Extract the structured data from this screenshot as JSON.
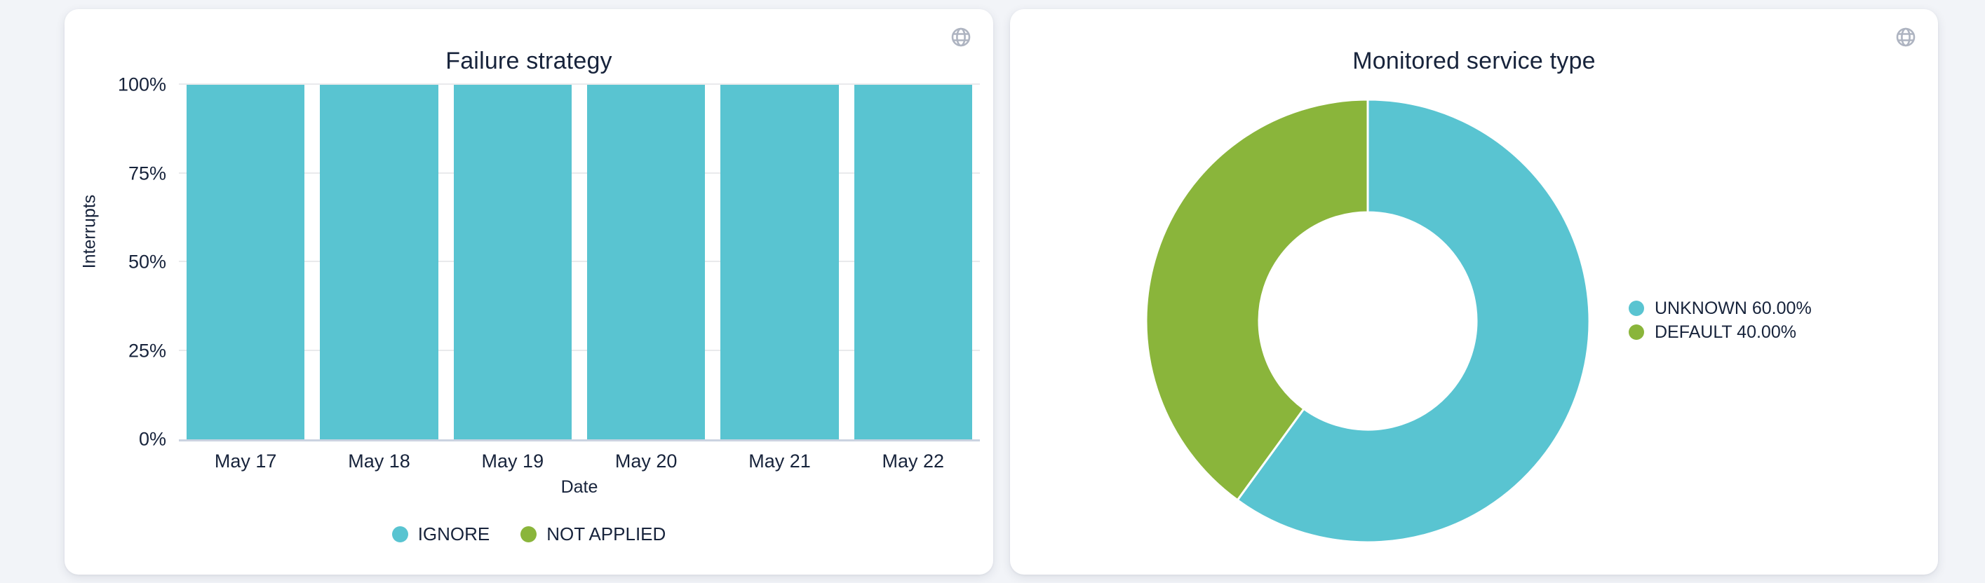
{
  "page": {
    "background": "#F2F4F8"
  },
  "icons": {
    "globe": {
      "name": "globe-icon",
      "color": "#AEB4C1"
    }
  },
  "colors": {
    "teal": "#59C4D1",
    "green": "#8AB53B",
    "text": "#17233B",
    "grid": "#E9EAEC",
    "axis_line": "#CBD3E1"
  },
  "cards": {
    "failure_strategy": {
      "title": "Failure strategy"
    },
    "monitored_service_type": {
      "title": "Monitored service type"
    }
  },
  "chart_data": [
    {
      "type": "bar",
      "title": "Failure strategy",
      "categories": [
        "May 17",
        "May 18",
        "May 19",
        "May 20",
        "May 21",
        "May 22"
      ],
      "series": [
        {
          "name": "IGNORE",
          "color": "#59C4D1",
          "values": [
            100,
            100,
            100,
            100,
            100,
            100
          ]
        },
        {
          "name": "NOT APPLIED",
          "color": "#8AB53B",
          "values": [
            0,
            0,
            0,
            0,
            0,
            0
          ]
        }
      ],
      "xlabel": "Date",
      "ylabel": "Interrupts",
      "ylim": [
        0,
        100
      ],
      "yticks": [
        {
          "label": "0%",
          "value": 0
        },
        {
          "label": "25%",
          "value": 25
        },
        {
          "label": "50%",
          "value": 50
        },
        {
          "label": "75%",
          "value": 75
        },
        {
          "label": "100%",
          "value": 100
        }
      ],
      "grid": true,
      "legend_position": "bottom"
    },
    {
      "type": "pie",
      "title": "Monitored service type",
      "donut": true,
      "start_angle_deg": 0,
      "direction": "clockwise",
      "slices": [
        {
          "label": "UNKNOWN",
          "value": 60.0,
          "display": "UNKNOWN 60.00%",
          "color": "#59C4D1"
        },
        {
          "label": "DEFAULT",
          "value": 40.0,
          "display": "DEFAULT 40.00%",
          "color": "#8AB53B"
        }
      ],
      "legend_position": "right"
    }
  ]
}
